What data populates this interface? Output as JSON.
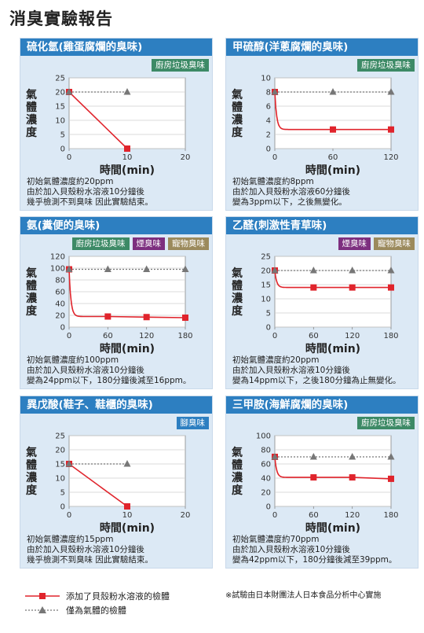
{
  "page_title": "消臭實驗報告",
  "y_axis_label": "氣體濃度",
  "colors": {
    "header": "#2d7fc1",
    "panel_bg": "#dce9f5",
    "tag_kitchen": "#3d8a66",
    "tag_smoke": "#7d2f7f",
    "tag_pet": "#9b8a5c",
    "tag_foot": "#2d7fc1",
    "treated": "#e0242c",
    "control": "#777777"
  },
  "panels": [
    {
      "title": "硫化氫(雞蛋腐爛的臭味)",
      "tags": [
        {
          "label": "廚房垃圾臭味",
          "color": "#3d8a66"
        }
      ],
      "notes": [
        "初始氣體濃度約20ppm",
        "由於加入貝殼粉水溶液10分鐘後",
        "幾乎檢測不到臭味 因此實驗結束。"
      ],
      "chart_data": {
        "type": "line",
        "xlabel": "時間(min)",
        "ylabel": "氣體濃度",
        "xlim": [
          0,
          20
        ],
        "ylim": [
          0,
          25
        ],
        "xticks": [
          0,
          10,
          20
        ],
        "yticks": [
          0,
          5,
          10,
          15,
          20,
          25
        ],
        "grid": true,
        "curve": "linear",
        "series": [
          {
            "role": "treated",
            "x": [
              0,
              10
            ],
            "y": [
              20,
              0
            ]
          },
          {
            "role": "control",
            "x": [
              0,
              10
            ],
            "y": [
              20,
              20
            ]
          }
        ]
      }
    },
    {
      "title": "甲硫醇(洋蔥腐爛的臭味)",
      "tags": [
        {
          "label": "廚房垃圾臭味",
          "color": "#3d8a66"
        }
      ],
      "notes": [
        "初始氣體濃度約8ppm",
        "由於加入貝殼粉水溶液60分鐘後",
        "變為3ppm以下，之後無變化。"
      ],
      "chart_data": {
        "type": "line",
        "xlabel": "時間(min)",
        "ylabel": "氣體濃度",
        "xlim": [
          0,
          120
        ],
        "ylim": [
          0,
          10
        ],
        "xticks": [
          0,
          60,
          120
        ],
        "yticks": [
          0,
          2,
          4,
          6,
          8,
          10
        ],
        "grid": true,
        "curve": "decay",
        "series": [
          {
            "role": "treated",
            "x": [
              0,
              60,
              120
            ],
            "y": [
              8,
              2.7,
              2.7
            ]
          },
          {
            "role": "control",
            "x": [
              0,
              60,
              120
            ],
            "y": [
              8,
              8,
              8
            ]
          }
        ]
      }
    },
    {
      "title": "氨(糞便的臭味)",
      "tags": [
        {
          "label": "廚房垃圾臭味",
          "color": "#3d8a66"
        },
        {
          "label": "煙臭味",
          "color": "#7d2f7f"
        },
        {
          "label": "寵物臭味",
          "color": "#9b8a5c"
        }
      ],
      "notes": [
        "初始氣體濃度約100ppm",
        "由於加入貝殼粉水溶液10分鐘後",
        "變為24ppm以下，180分鐘後減至16ppm。"
      ],
      "chart_data": {
        "type": "line",
        "xlabel": "時間(min)",
        "ylabel": "氣體濃度",
        "xlim": [
          0,
          180
        ],
        "ylim": [
          0,
          120
        ],
        "xticks": [
          0,
          60,
          120,
          180
        ],
        "yticks": [
          0,
          20,
          40,
          60,
          80,
          100,
          120
        ],
        "grid": true,
        "curve": "decay",
        "series": [
          {
            "role": "treated",
            "x": [
              0,
              60,
              120,
              180
            ],
            "y": [
              98,
              18,
              17,
              16
            ]
          },
          {
            "role": "control",
            "x": [
              0,
              60,
              120,
              180
            ],
            "y": [
              98,
              98,
              98,
              98
            ]
          }
        ]
      }
    },
    {
      "title": "乙醛(刺激性青草味)",
      "tags": [
        {
          "label": "煙臭味",
          "color": "#7d2f7f"
        },
        {
          "label": "寵物臭味",
          "color": "#9b8a5c"
        }
      ],
      "notes": [
        "初始氣體濃度約20ppm",
        "由於加入貝殼粉水溶液10分鐘後",
        "變為14ppm以下，之後180分鐘為止無變化。"
      ],
      "chart_data": {
        "type": "line",
        "xlabel": "時間(min)",
        "ylabel": "氣體濃度",
        "xlim": [
          0,
          180
        ],
        "ylim": [
          0,
          25
        ],
        "xticks": [
          0,
          60,
          120,
          180
        ],
        "yticks": [
          0,
          5,
          10,
          15,
          20,
          25
        ],
        "grid": true,
        "curve": "decay",
        "series": [
          {
            "role": "treated",
            "x": [
              0,
              60,
              120,
              180
            ],
            "y": [
              20,
              14,
              14,
              14
            ]
          },
          {
            "role": "control",
            "x": [
              0,
              60,
              120,
              180
            ],
            "y": [
              20,
              20,
              20,
              20
            ]
          }
        ]
      }
    },
    {
      "title": "異戊酸(鞋子、鞋櫃的臭味)",
      "tags": [
        {
          "label": "腳臭味",
          "color": "#2d7fc1"
        }
      ],
      "notes": [
        "初始氣體濃度約15ppm",
        "由於加入貝殼粉水溶液10分鐘後",
        "幾乎檢測不到臭味 因此實驗結束。"
      ],
      "chart_data": {
        "type": "line",
        "xlabel": "時間(min)",
        "ylabel": "氣體濃度",
        "xlim": [
          0,
          20
        ],
        "ylim": [
          0,
          25
        ],
        "xticks": [
          0,
          10,
          20
        ],
        "yticks": [
          0,
          5,
          10,
          15,
          20,
          25
        ],
        "grid": true,
        "curve": "linear",
        "series": [
          {
            "role": "treated",
            "x": [
              0,
              10
            ],
            "y": [
              15,
              0
            ]
          },
          {
            "role": "control",
            "x": [
              0,
              10
            ],
            "y": [
              15,
              15
            ]
          }
        ]
      }
    },
    {
      "title": "三甲胺(海鮮腐爛的臭味)",
      "tags": [
        {
          "label": "廚房垃圾臭味",
          "color": "#3d8a66"
        }
      ],
      "notes": [
        "初始氣體濃度約70ppm",
        "由於加入貝殼粉水溶液10分鐘後",
        "變為42ppm以下，180分鐘後減至39ppm。"
      ],
      "chart_data": {
        "type": "line",
        "xlabel": "時間(min)",
        "ylabel": "氣體濃度",
        "xlim": [
          0,
          180
        ],
        "ylim": [
          0,
          100
        ],
        "xticks": [
          0,
          60,
          120,
          180
        ],
        "yticks": [
          0,
          20,
          40,
          60,
          80,
          100
        ],
        "grid": true,
        "curve": "decay",
        "series": [
          {
            "role": "treated",
            "x": [
              0,
              60,
              120,
              180
            ],
            "y": [
              70,
              41,
              41,
              39
            ]
          },
          {
            "role": "control",
            "x": [
              0,
              60,
              120,
              180
            ],
            "y": [
              70,
              70,
              70,
              70
            ]
          }
        ]
      }
    }
  ],
  "legend": {
    "treated_label": "添加了貝殼粉水溶液的檢體",
    "control_label": "僅為氣體的檢體"
  },
  "footnote": "※試驗由日本財團法人日本食品分析中心實施"
}
